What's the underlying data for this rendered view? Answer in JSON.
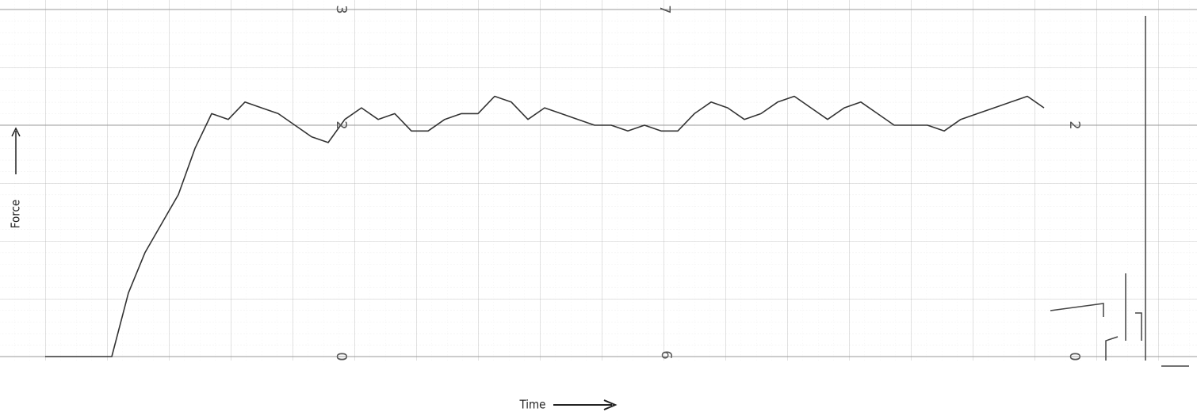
{
  "chart_data": {
    "type": "line",
    "x_label": "Time",
    "y_label": "Force",
    "color": "#333333",
    "ylim": [
      0,
      3
    ],
    "yticks": [
      0,
      2,
      3
    ],
    "paper_digits": [
      "7",
      "6",
      "2",
      "0"
    ],
    "values": [
      0,
      0,
      0,
      0,
      0,
      0.55,
      0.9,
      1.15,
      1.4,
      1.8,
      2.1,
      2.05,
      2.2,
      2.15,
      2.1,
      2.0,
      1.9,
      1.85,
      2.05,
      2.15,
      2.05,
      2.1,
      1.95,
      1.95,
      2.05,
      2.1,
      2.1,
      2.25,
      2.2,
      2.05,
      2.15,
      2.1,
      2.05,
      2.0,
      2.0,
      1.95,
      2.0,
      1.95,
      1.95,
      2.1,
      2.2,
      2.15,
      2.05,
      2.1,
      2.2,
      2.25,
      2.15,
      2.05,
      2.15,
      2.2,
      2.1,
      2.0,
      2.0,
      2.0,
      1.95,
      2.05,
      2.1,
      2.15,
      2.2,
      2.25,
      2.15
    ]
  }
}
